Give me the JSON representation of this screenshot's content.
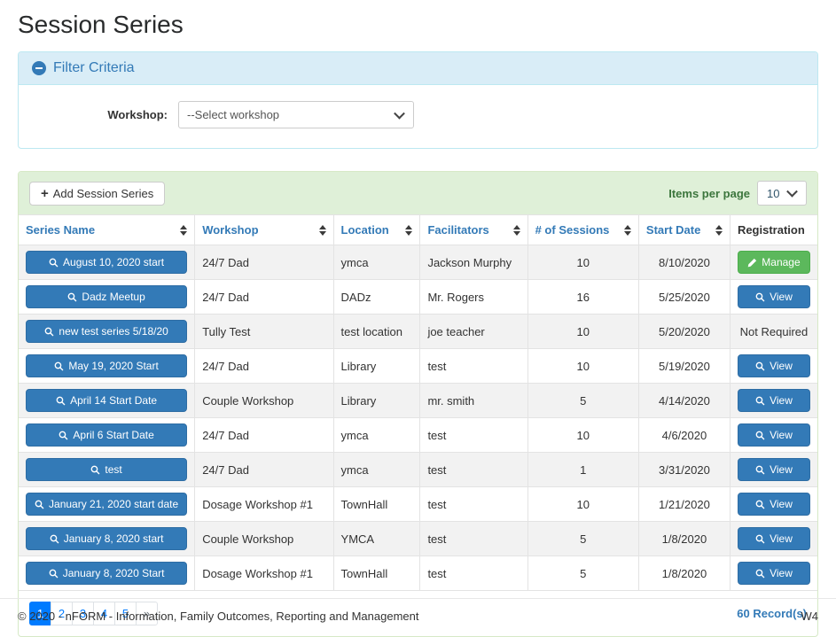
{
  "page": {
    "title": "Session Series"
  },
  "colors": {
    "primary_blue": "#337ab7",
    "success_green": "#5cb85c",
    "pagination_active_blue": "#007bff",
    "filter_header_bg": "#d9edf7",
    "filter_border": "#bce8f1",
    "toolbar_bg": "#dff0d8",
    "toolbar_border": "#d6e9c6"
  },
  "filter": {
    "title": "Filter Criteria",
    "collapse_icon": "minus-circle-icon",
    "workshop_label": "Workshop:",
    "workshop_selected": "--Select workshop"
  },
  "toolbar": {
    "add_button_label": "Add Session Series",
    "add_button_icon": "plus-icon",
    "items_per_page_label": "Items per page",
    "items_per_page_selected": "10"
  },
  "table": {
    "columns": [
      {
        "label": "Series Name",
        "sortable": true
      },
      {
        "label": "Workshop",
        "sortable": true
      },
      {
        "label": "Location",
        "sortable": true
      },
      {
        "label": "Facilitators",
        "sortable": true
      },
      {
        "label": "# of Sessions",
        "sortable": true
      },
      {
        "label": "Start Date",
        "sortable": true
      },
      {
        "label": "Registration",
        "sortable": false
      }
    ],
    "rows": [
      {
        "series_name": "August 10, 2020 start",
        "workshop": "24/7 Dad",
        "location": "ymca",
        "facilitators": "Jackson Murphy",
        "sessions": "10",
        "start_date": "8/10/2020",
        "registration": {
          "type": "manage",
          "label": "Manage",
          "icon": "pencil-icon"
        }
      },
      {
        "series_name": "Dadz Meetup",
        "workshop": "24/7 Dad",
        "location": "DADz",
        "facilitators": "Mr. Rogers",
        "sessions": "16",
        "start_date": "5/25/2020",
        "registration": {
          "type": "view",
          "label": "View",
          "icon": "magnifier-icon"
        }
      },
      {
        "series_name": "new test series 5/18/20",
        "workshop": "Tully Test",
        "location": "test location",
        "facilitators": "joe teacher",
        "sessions": "10",
        "start_date": "5/20/2020",
        "registration": {
          "type": "text",
          "label": "Not Required"
        }
      },
      {
        "series_name": "May 19, 2020 Start",
        "workshop": "24/7 Dad",
        "location": "Library",
        "facilitators": "test",
        "sessions": "10",
        "start_date": "5/19/2020",
        "registration": {
          "type": "view",
          "label": "View",
          "icon": "magnifier-icon"
        }
      },
      {
        "series_name": "April 14 Start Date",
        "workshop": "Couple Workshop",
        "location": "Library",
        "facilitators": "mr. smith",
        "sessions": "5",
        "start_date": "4/14/2020",
        "registration": {
          "type": "view",
          "label": "View",
          "icon": "magnifier-icon"
        }
      },
      {
        "series_name": "April 6 Start Date",
        "workshop": "24/7 Dad",
        "location": "ymca",
        "facilitators": "test",
        "sessions": "10",
        "start_date": "4/6/2020",
        "registration": {
          "type": "view",
          "label": "View",
          "icon": "magnifier-icon"
        }
      },
      {
        "series_name": "test",
        "workshop": "24/7 Dad",
        "location": "ymca",
        "facilitators": "test",
        "sessions": "1",
        "start_date": "3/31/2020",
        "registration": {
          "type": "view",
          "label": "View",
          "icon": "magnifier-icon"
        }
      },
      {
        "series_name": "January 21, 2020 start date",
        "workshop": "Dosage Workshop #1",
        "location": "TownHall",
        "facilitators": "test",
        "sessions": "10",
        "start_date": "1/21/2020",
        "registration": {
          "type": "view",
          "label": "View",
          "icon": "magnifier-icon"
        }
      },
      {
        "series_name": "January 8, 2020 start",
        "workshop": "Couple Workshop",
        "location": "YMCA",
        "facilitators": "test",
        "sessions": "5",
        "start_date": "1/8/2020",
        "registration": {
          "type": "view",
          "label": "View",
          "icon": "magnifier-icon"
        }
      },
      {
        "series_name": "January 8, 2020 Start",
        "workshop": "Dosage Workshop #1",
        "location": "TownHall",
        "facilitators": "test",
        "sessions": "5",
        "start_date": "1/8/2020",
        "registration": {
          "type": "view",
          "label": "View",
          "icon": "magnifier-icon"
        }
      }
    ]
  },
  "pagination": {
    "pages": [
      "1",
      "2",
      "3",
      "4",
      "5",
      "»"
    ],
    "active_page": "1",
    "records_text": "60 Record(s)"
  },
  "footer": {
    "copyright": "© 2020 - nFORM - Information, Family Outcomes, Reporting and Management",
    "version": "W4"
  }
}
